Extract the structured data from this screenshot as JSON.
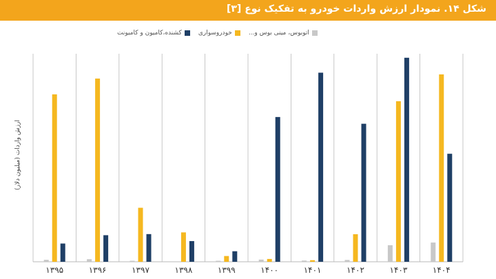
{
  "title": "شکل ۱۴. نمودار ارزش واردات خودرو به تفکیک نوع [۳]",
  "colors": {
    "title_bg": "#f3a51c",
    "bus": "#c8c8c8",
    "car": "#f5b820",
    "truck": "#1f3f66",
    "divider": "#b9b9b9",
    "label": "#555555"
  },
  "chart_data": {
    "type": "bar",
    "title": "شکل ۱۴. نمودار ارزش واردات خودرو به تفکیک نوع [۳]",
    "ylabel": "ارزش واردات (میلیون دلار)",
    "xlabel": "",
    "ylim": [
      0,
      1800
    ],
    "legend_position": "top-center",
    "grid": false,
    "categories": [
      "۱۳۹۵",
      "۱۳۹۶",
      "۱۳۹۷",
      "۱۳۹۸",
      "۱۳۹۹",
      "۱۴۰۰",
      "۱۴۰۱",
      "۱۴۰۲",
      "۱۴۰۳",
      "۱۴۰۴"
    ],
    "series": [
      {
        "name": "اتوبوس، مینی بوس و...",
        "color": "#c8c8c8",
        "values": [
          16,
          21,
          5,
          0,
          4,
          18,
          10,
          15,
          135,
          157
        ],
        "labels": [
          "۱۶",
          "۲۱",
          "۵",
          "۰",
          "۴",
          "۱۸",
          "۱۰",
          "۱۵",
          "۱۳۵",
          "۱۵۷"
        ]
      },
      {
        "name": "خودروسواری",
        "color": "#f5b820",
        "values": [
          1367,
          1496,
          441,
          240,
          47,
          23,
          13,
          225,
          1311,
          1530
        ],
        "labels": [
          "۱۳۶۷",
          "۱۴۹۶",
          "۴۴۱",
          "۲۴۰",
          "۴۷",
          "۲۳",
          "۱۳",
          "۲۲۵",
          "۱۳۱۱",
          "۱۵۳۰"
        ]
      },
      {
        "name": "کشنده،کامیون و کامیونت",
        "color": "#1f3f66",
        "values": [
          149,
          217,
          226,
          169,
          86,
          1182,
          1544,
          1127,
          1666,
          882
        ],
        "labels": [
          "۱۴۹",
          "۲۱۷",
          "۲۲۶",
          "۱۶۹",
          "۸۶",
          "۱۱۸۲",
          "۱۵۴۴",
          "۱۱۲۷",
          "۱۶۶۶",
          "۸۸۲"
        ]
      }
    ]
  }
}
